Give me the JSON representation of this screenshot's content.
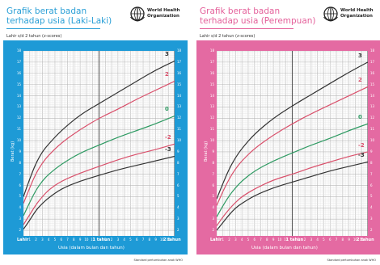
{
  "colors": {
    "boys_accent": "#2a9fd6",
    "girls_accent": "#e4609a",
    "sd3": "#333333",
    "sd2": "#d9506b",
    "sd0": "#2e9a62",
    "sdm2": "#d9506b",
    "sdm3": "#333333"
  },
  "who_label": [
    "World Health",
    "Organization"
  ],
  "panels": [
    {
      "id": "boys",
      "title_line1": "Grafik berat badan",
      "title_line2": "terhadap usia (Laki-Laki)",
      "subtitle": "Lahir s/d 2 tahun (z-scores)",
      "ylabel": "Berat (kg)",
      "xlabel": "Usia (dalam bulan dan tahun)",
      "footer": "Standard pertumbuhan anak WHO",
      "x_major": [
        "Lahir",
        "1 tahun",
        "2 tahun"
      ],
      "x_minor": [
        "1",
        "2",
        "3",
        "4",
        "5",
        "6",
        "7",
        "8",
        "9",
        "10",
        "11",
        "1",
        "2",
        "3",
        "4",
        "5",
        "6",
        "7",
        "8",
        "9",
        "10",
        "11"
      ],
      "y_ticks": [
        "2",
        "3",
        "4",
        "5",
        "6",
        "7",
        "8",
        "9",
        "10",
        "11",
        "12",
        "13",
        "14",
        "15",
        "16",
        "17",
        "18"
      ]
    },
    {
      "id": "girls",
      "title_line1": "Grafik berat badan",
      "title_line2": "terhadap usia (Perempuan)",
      "subtitle": "Lahir s/d 2 tahun (z-scores)",
      "ylabel": "Berat (kg)",
      "xlabel": "Usia (dalam bulan dan tahun)",
      "footer": "Standard pertumbuhan anak WHO",
      "x_major": [
        "Lahir",
        "1 tahun",
        "2 tahun"
      ],
      "x_minor": [
        "1",
        "2",
        "3",
        "4",
        "5",
        "6",
        "7",
        "8",
        "9",
        "10",
        "11",
        "1",
        "2",
        "3",
        "4",
        "5",
        "6",
        "7",
        "8",
        "9",
        "10",
        "11"
      ],
      "y_ticks": [
        "2",
        "3",
        "4",
        "5",
        "6",
        "7",
        "8",
        "9",
        "10",
        "11",
        "12",
        "13",
        "14",
        "15",
        "16",
        "17",
        "18"
      ]
    }
  ],
  "chart_data": [
    {
      "type": "line",
      "title": "Grafik berat badan terhadap usia (Laki-Laki)",
      "xlabel": "Usia (dalam bulan dan tahun)",
      "ylabel": "Berat (kg)",
      "xlim": [
        0,
        24
      ],
      "ylim": [
        1.5,
        18
      ],
      "grid": true,
      "x": [
        0,
        1,
        2,
        3,
        4,
        6,
        9,
        12,
        15,
        18,
        21,
        24
      ],
      "series": [
        {
          "name": "3",
          "values": [
            5.0,
            6.6,
            8.0,
            9.0,
            9.7,
            10.9,
            12.3,
            13.3,
            14.3,
            15.3,
            16.3,
            17.1
          ]
        },
        {
          "name": "2",
          "values": [
            4.4,
            5.8,
            7.1,
            8.0,
            8.7,
            9.8,
            11.0,
            12.0,
            12.8,
            13.7,
            14.5,
            15.3
          ]
        },
        {
          "name": "0",
          "values": [
            3.3,
            4.5,
            5.6,
            6.4,
            7.0,
            7.9,
            8.9,
            9.6,
            10.3,
            10.9,
            11.5,
            12.2
          ]
        },
        {
          "name": "-2",
          "values": [
            2.5,
            3.4,
            4.3,
            5.0,
            5.6,
            6.4,
            7.1,
            7.7,
            8.3,
            8.8,
            9.2,
            9.7
          ]
        },
        {
          "name": "-3",
          "values": [
            2.1,
            2.9,
            3.8,
            4.4,
            4.9,
            5.7,
            6.4,
            6.9,
            7.4,
            7.8,
            8.2,
            8.6
          ]
        }
      ]
    },
    {
      "type": "line",
      "title": "Grafik berat badan terhadap usia (Perempuan)",
      "xlabel": "Usia (dalam bulan dan tahun)",
      "ylabel": "Berat (kg)",
      "xlim": [
        0,
        24
      ],
      "ylim": [
        1.5,
        18
      ],
      "grid": true,
      "x": [
        0,
        1,
        2,
        3,
        4,
        6,
        9,
        12,
        15,
        18,
        21,
        24
      ],
      "series": [
        {
          "name": "3",
          "values": [
            4.8,
            6.2,
            7.5,
            8.5,
            9.3,
            10.6,
            12.0,
            13.1,
            14.1,
            15.1,
            16.1,
            17.0
          ]
        },
        {
          "name": "2",
          "values": [
            4.2,
            5.5,
            6.6,
            7.5,
            8.2,
            9.3,
            10.5,
            11.5,
            12.4,
            13.2,
            14.0,
            14.8
          ]
        },
        {
          "name": "0",
          "values": [
            3.2,
            4.2,
            5.1,
            5.8,
            6.4,
            7.3,
            8.2,
            8.9,
            9.6,
            10.2,
            10.9,
            11.5
          ]
        },
        {
          "name": "-2",
          "values": [
            2.4,
            3.2,
            3.9,
            4.5,
            5.0,
            5.7,
            6.5,
            7.0,
            7.6,
            8.1,
            8.6,
            9.0
          ]
        },
        {
          "name": "-3",
          "values": [
            2.0,
            2.7,
            3.4,
            4.0,
            4.4,
            5.1,
            5.8,
            6.3,
            6.8,
            7.3,
            7.7,
            8.1
          ]
        }
      ]
    }
  ]
}
